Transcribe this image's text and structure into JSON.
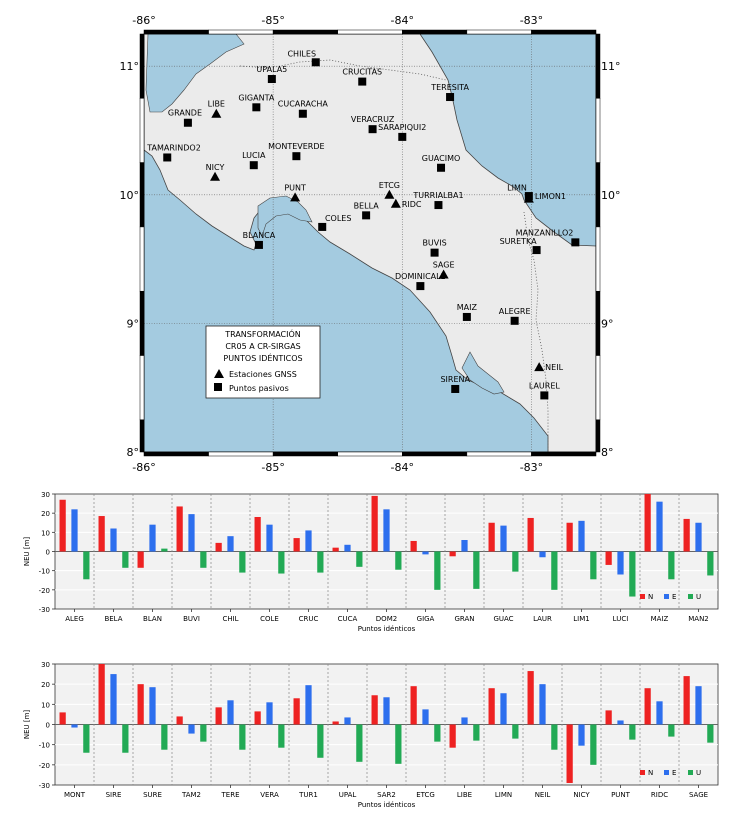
{
  "map": {
    "lon_ticks": [
      "-86°",
      "-85°",
      "-84°",
      "-83°"
    ],
    "lat_ticks": [
      "11°",
      "10°",
      "9°",
      "8°"
    ],
    "legend_title": [
      "TRANSFORMACIÓN",
      "CR05 A CR-SIRGAS",
      "PUNTOS IDÉNTICOS"
    ],
    "legend_items": [
      {
        "symbol": "triangle",
        "label": "Estaciones GNSS"
      },
      {
        "symbol": "square",
        "label": "Puntos pasivos"
      }
    ],
    "points": [
      {
        "name": "CHILES",
        "type": "square",
        "lon": -84.67,
        "lat": 11.03
      },
      {
        "name": "UPALA5",
        "type": "square",
        "lon": -85.01,
        "lat": 10.9
      },
      {
        "name": "CRUCITAS",
        "type": "square",
        "lon": -84.31,
        "lat": 10.88
      },
      {
        "name": "TERESITA",
        "type": "square",
        "lon": -83.63,
        "lat": 10.76
      },
      {
        "name": "GIGANTA",
        "type": "square",
        "lon": -85.13,
        "lat": 10.68
      },
      {
        "name": "LIBE",
        "type": "triangle",
        "lon": -85.44,
        "lat": 10.63
      },
      {
        "name": "GRANDE",
        "type": "square",
        "lon": -85.66,
        "lat": 10.56
      },
      {
        "name": "CUCARACHA",
        "type": "square",
        "lon": -84.77,
        "lat": 10.63
      },
      {
        "name": "VERACRUZ",
        "type": "square",
        "lon": -84.23,
        "lat": 10.51
      },
      {
        "name": "SARAPIQUI2",
        "type": "square",
        "lon": -84.0,
        "lat": 10.45
      },
      {
        "name": "TAMARINDO2",
        "type": "square",
        "lon": -85.82,
        "lat": 10.29
      },
      {
        "name": "MONTEVERDE",
        "type": "square",
        "lon": -84.82,
        "lat": 10.3
      },
      {
        "name": "LUCIA",
        "type": "square",
        "lon": -85.15,
        "lat": 10.23
      },
      {
        "name": "GUACIMO",
        "type": "square",
        "lon": -83.7,
        "lat": 10.21
      },
      {
        "name": "NICY",
        "type": "triangle",
        "lon": -85.45,
        "lat": 10.14
      },
      {
        "name": "PUNT",
        "type": "triangle",
        "lon": -84.83,
        "lat": 9.98
      },
      {
        "name": "ETCG",
        "type": "triangle",
        "lon": -84.1,
        "lat": 10.0
      },
      {
        "name": "RIDC",
        "type": "triangle",
        "lon": -84.05,
        "lat": 9.93
      },
      {
        "name": "LIMN",
        "type": "triangle",
        "lon": -83.02,
        "lat": 9.97
      },
      {
        "name": "LIMON1",
        "type": "square",
        "lon": -83.02,
        "lat": 9.99
      },
      {
        "name": "TURRIALBA1",
        "type": "square",
        "lon": -83.72,
        "lat": 9.92
      },
      {
        "name": "BELLA",
        "type": "square",
        "lon": -84.28,
        "lat": 9.84
      },
      {
        "name": "COLES",
        "type": "square",
        "lon": -84.62,
        "lat": 9.75
      },
      {
        "name": "BLANCA",
        "type": "square",
        "lon": -85.11,
        "lat": 9.61
      },
      {
        "name": "MANZANILLO2",
        "type": "square",
        "lon": -82.66,
        "lat": 9.63
      },
      {
        "name": "SURETKA",
        "type": "square",
        "lon": -82.96,
        "lat": 9.57
      },
      {
        "name": "BUVIS",
        "type": "square",
        "lon": -83.75,
        "lat": 9.55
      },
      {
        "name": "SAGE",
        "type": "triangle",
        "lon": -83.68,
        "lat": 9.38
      },
      {
        "name": "DOMINICAL2",
        "type": "square",
        "lon": -83.86,
        "lat": 9.29
      },
      {
        "name": "MAIZ",
        "type": "square",
        "lon": -83.5,
        "lat": 9.05
      },
      {
        "name": "ALEGRE",
        "type": "square",
        "lon": -83.13,
        "lat": 9.02
      },
      {
        "name": "NEIL",
        "type": "triangle",
        "lon": -82.94,
        "lat": 8.66
      },
      {
        "name": "SIRENA",
        "type": "square",
        "lon": -83.59,
        "lat": 8.49
      },
      {
        "name": "LAUREL",
        "type": "square",
        "lon": -82.9,
        "lat": 8.44
      }
    ]
  },
  "chart_data": [
    {
      "type": "bar",
      "ylabel": "NEU [m]",
      "xlabel": "Puntos idénticos",
      "ylim": [
        -30,
        30
      ],
      "yticks": [
        -30,
        -20,
        -10,
        0,
        10,
        20,
        30
      ],
      "legend": {
        "placement": "bottom-right"
      },
      "categories": [
        "ALEG",
        "BELA",
        "BLAN",
        "BUVI",
        "CHIL",
        "COLE",
        "CRUC",
        "CUCA",
        "DOM2",
        "GIGA",
        "GRAN",
        "GUAC",
        "LAUR",
        "LIM1",
        "LUCI",
        "MAIZ",
        "MAN2"
      ],
      "series": [
        {
          "name": "N",
          "color": "#ee2222",
          "values": [
            27,
            18.5,
            -8.5,
            23.5,
            4.5,
            18,
            7,
            2,
            29,
            5.5,
            -2.5,
            15,
            17.5,
            15,
            -7,
            30,
            17
          ]
        },
        {
          "name": "E",
          "color": "#2d6fee",
          "values": [
            22,
            12,
            14,
            19.5,
            8,
            14,
            11,
            3.5,
            22,
            -1.5,
            6,
            13.5,
            -3,
            16,
            -12,
            26,
            15
          ]
        },
        {
          "name": "U",
          "color": "#22aa55",
          "values": [
            -14.5,
            -8.5,
            1.5,
            -8.5,
            -11,
            -11.5,
            -11,
            -8,
            -9.5,
            -20,
            -19.5,
            -10.5,
            -20,
            -14.5,
            -23.5,
            -14.5,
            -12.5
          ]
        }
      ]
    },
    {
      "type": "bar",
      "ylabel": "NEU [m]",
      "xlabel": "Puntos idénticos",
      "ylim": [
        -30,
        30
      ],
      "yticks": [
        -30,
        -20,
        -10,
        0,
        10,
        20,
        30
      ],
      "legend": {
        "placement": "bottom-right"
      },
      "categories": [
        "MONT",
        "SIRE",
        "SURE",
        "TAM2",
        "TERE",
        "VERA",
        "TUR1",
        "UPAL",
        "SAR2",
        "ETCG",
        "LIBE",
        "LIMN",
        "NEIL",
        "NICY",
        "PUNT",
        "RIDC",
        "SAGE"
      ],
      "series": [
        {
          "name": "N",
          "color": "#ee2222",
          "values": [
            6,
            30,
            20,
            4,
            8.5,
            6.5,
            13,
            1.5,
            14.5,
            19,
            -11.5,
            18,
            26.5,
            -29,
            7,
            18,
            24
          ]
        },
        {
          "name": "E",
          "color": "#2d6fee",
          "values": [
            -1.5,
            25,
            18.5,
            -4.5,
            12,
            11,
            19.5,
            3.5,
            13.5,
            7.5,
            3.5,
            15.5,
            20,
            -10.5,
            2,
            11.5,
            19
          ]
        },
        {
          "name": "U",
          "color": "#22aa55",
          "values": [
            -14,
            -14,
            -12.5,
            -8.5,
            -12.5,
            -11.5,
            -16.5,
            -18.5,
            -19.5,
            -8.5,
            -8,
            -7,
            -12.5,
            -20,
            -7.5,
            -6,
            -9
          ]
        }
      ]
    }
  ]
}
